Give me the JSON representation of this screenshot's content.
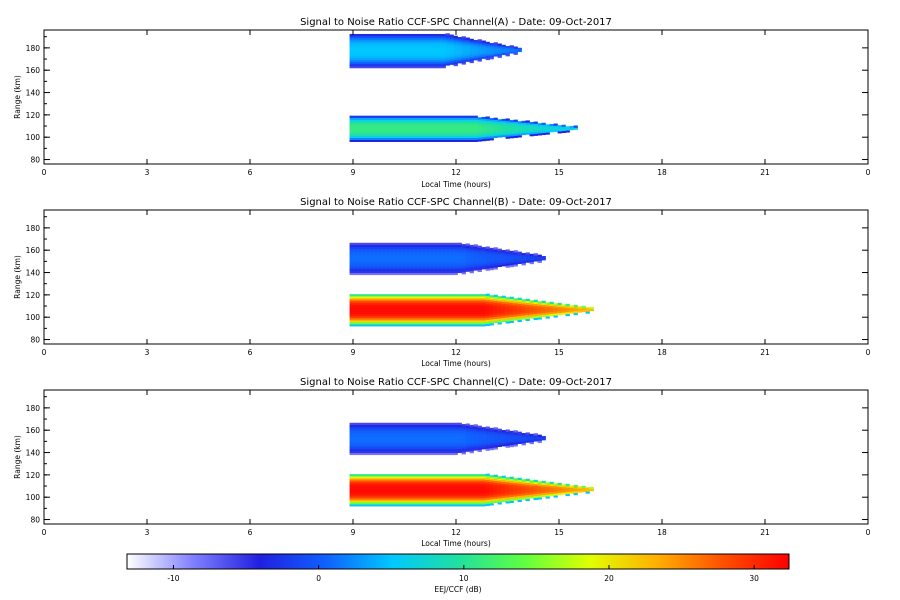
{
  "colorbar": {
    "label": "EEJ/CCF (dB)",
    "ticks": [
      "-10",
      "0",
      "10",
      "20",
      "30"
    ],
    "tick_values": [
      -10,
      0,
      10,
      20,
      30
    ],
    "range": [
      -13.2,
      32.4
    ],
    "colormap": [
      "#ffffff",
      "#8080ff",
      "#2020e0",
      "#1060ff",
      "#00c8ff",
      "#20e0a0",
      "#60ff40",
      "#e0ff00",
      "#ffb000",
      "#ff5000",
      "#ff0000"
    ]
  },
  "chart_data": [
    {
      "type": "heatmap",
      "title": "Signal to Noise Ratio CCF-SPC Channel(A) - Date: 09-Oct-2017",
      "xlabel": "Local Time (hours)",
      "ylabel": "Range (km)",
      "xlim": [
        0,
        24
      ],
      "ylim": [
        76,
        196
      ],
      "xticks": [
        "0",
        "3",
        "6",
        "9",
        "12",
        "15",
        "18",
        "21",
        "0"
      ],
      "yticks": [
        "80",
        "100",
        "120",
        "140",
        "160",
        "180"
      ],
      "ytick_values": [
        80,
        100,
        120,
        140,
        160,
        180
      ],
      "layers": [
        {
          "range_km": [
            96,
            118
          ],
          "time_h": [
            8.9,
            15.5
          ],
          "peak_db": 11,
          "edge_db": -4
        },
        {
          "range_km": [
            162,
            192
          ],
          "time_h": [
            8.9,
            13.8
          ],
          "peak_db": 5,
          "edge_db": -6
        }
      ]
    },
    {
      "type": "heatmap",
      "title": "Signal to Noise Ratio CCF-SPC Channel(B) - Date: 09-Oct-2017",
      "xlabel": "Local Time (hours)",
      "ylabel": "Range (km)",
      "xlim": [
        0,
        24
      ],
      "ylim": [
        76,
        196
      ],
      "xticks": [
        "0",
        "3",
        "6",
        "9",
        "12",
        "15",
        "18",
        "21",
        "0"
      ],
      "yticks": [
        "80",
        "100",
        "120",
        "140",
        "160",
        "180"
      ],
      "ytick_values": [
        80,
        100,
        120,
        140,
        160,
        180
      ],
      "layers": [
        {
          "range_km": [
            92,
            120
          ],
          "time_h": [
            8.9,
            15.9
          ],
          "peak_db": 32,
          "edge_db": 5
        },
        {
          "range_km": [
            138,
            166
          ],
          "time_h": [
            8.9,
            14.6
          ],
          "peak_db": 1,
          "edge_db": -8
        }
      ]
    },
    {
      "type": "heatmap",
      "title": "Signal to Noise Ratio CCF-SPC Channel(C) - Date: 09-Oct-2017",
      "xlabel": "Local Time (hours)",
      "ylabel": "Range (km)",
      "xlim": [
        0,
        24
      ],
      "ylim": [
        76,
        196
      ],
      "xticks": [
        "0",
        "3",
        "6",
        "9",
        "12",
        "15",
        "18",
        "21",
        "0"
      ],
      "yticks": [
        "80",
        "100",
        "120",
        "140",
        "160",
        "180"
      ],
      "ytick_values": [
        80,
        100,
        120,
        140,
        160,
        180
      ],
      "layers": [
        {
          "range_km": [
            92,
            120
          ],
          "time_h": [
            8.9,
            15.9
          ],
          "peak_db": 32,
          "edge_db": 5
        },
        {
          "range_km": [
            138,
            166
          ],
          "time_h": [
            8.9,
            14.6
          ],
          "peak_db": 1,
          "edge_db": -8
        }
      ]
    }
  ]
}
